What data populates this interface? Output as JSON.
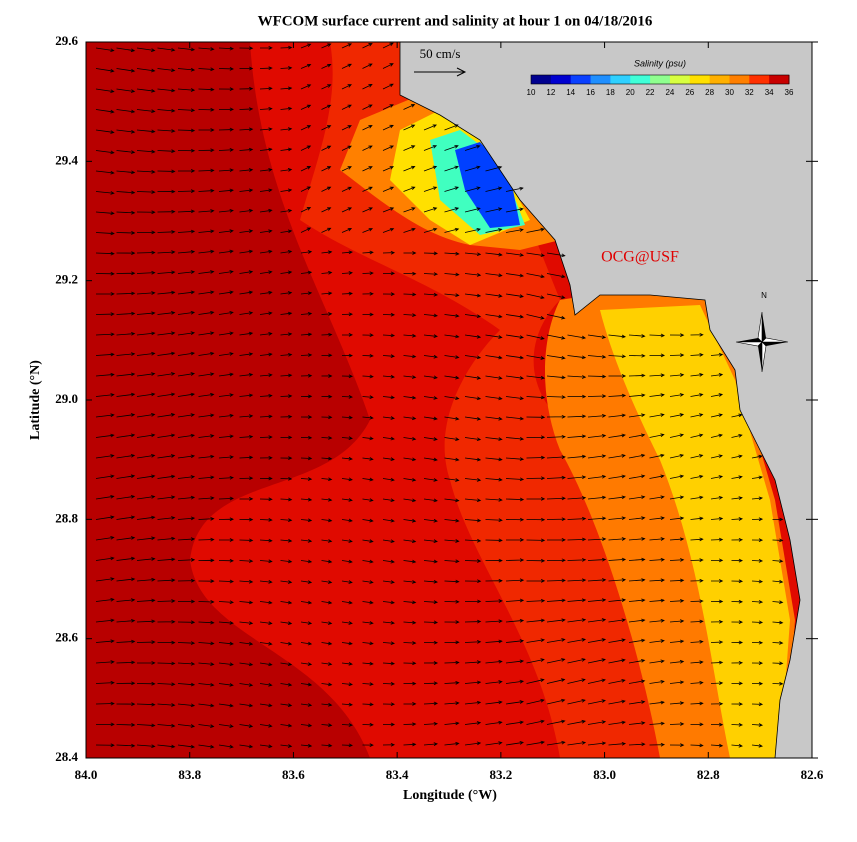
{
  "chart_data": {
    "type": "map",
    "title": "WFCOM surface current and salinity at hour 1 on 04/18/2016",
    "x_label": "Longitude (°W)",
    "y_label": "Latitude (°N)",
    "xlim": [
      84,
      82.6
    ],
    "ylim": [
      28.4,
      29.6
    ],
    "xticks": [
      {
        "value": 84,
        "label": "84.0"
      },
      83.8,
      83.6,
      83.4,
      83.2,
      {
        "value": 83,
        "label": "83.0"
      },
      82.8,
      82.6
    ],
    "yticks": [
      28.4,
      28.6,
      28.8,
      {
        "value": 29,
        "label": "29.0"
      },
      29.2,
      29.4,
      29.6
    ],
    "scale_label": "50 cm/s",
    "credit": "OCG@USF",
    "north_label": "N",
    "colorbar": {
      "title": "Salinity (psu)",
      "ticks": [
        10,
        12,
        14,
        16,
        18,
        20,
        22,
        24,
        26,
        28,
        30,
        32,
        34,
        36
      ],
      "colors": [
        "#00008f",
        "#0000d0",
        "#0a40ff",
        "#1f8fff",
        "#2fd0ff",
        "#40ffd8",
        "#8fff8f",
        "#d8ff40",
        "#ffe000",
        "#ffb000",
        "#ff7f00",
        "#ff3000",
        "#c80000"
      ]
    }
  }
}
